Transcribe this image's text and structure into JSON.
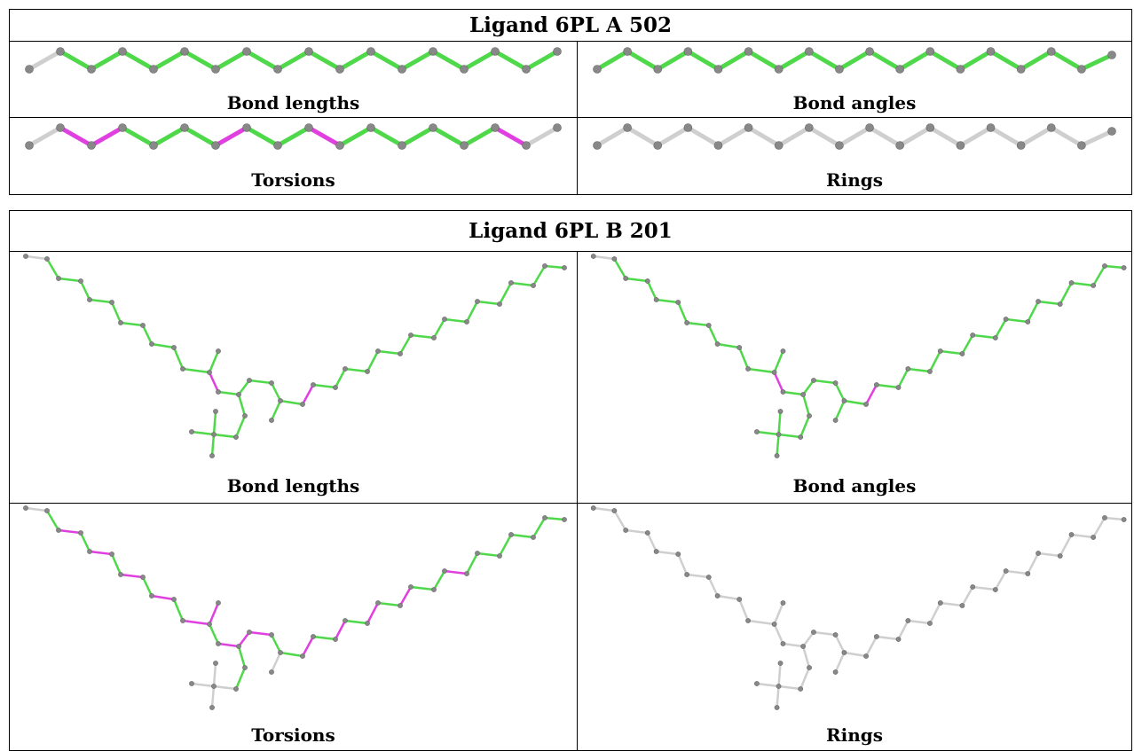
{
  "colors": {
    "good": "#4fd94a",
    "bad": "#e040e0",
    "neutral": "#cfcfcf",
    "atom": "#888888"
  },
  "panels": [
    {
      "title": "Ligand 6PL A 502",
      "cells": [
        {
          "label": "Bond lengths",
          "bond_colors": "good,good,good,good,good,good,good,good,good,good,good,good,good,good,good,good,good",
          "first_bond": "neutral"
        },
        {
          "label": "Bond angles",
          "bond_colors": "good,good,good,good,good,good,good,good,good,good,good,good,good,good,good,good,good",
          "first_bond": "good"
        },
        {
          "label": "Torsions",
          "bond_colors": "bad,bad,good,good,good,bad,good,bad,good,good,good,good,good,bad,neutral",
          "first_bond": "neutral"
        },
        {
          "label": "Rings",
          "bond_colors": "neutral",
          "first_bond": "neutral"
        }
      ]
    },
    {
      "title": "Ligand 6PL B 201",
      "cells": [
        {
          "label": "Bond lengths",
          "style": "lengths"
        },
        {
          "label": "Bond angles",
          "style": "angles"
        },
        {
          "label": "Torsions",
          "style": "torsions"
        },
        {
          "label": "Rings",
          "style": "rings"
        }
      ]
    }
  ]
}
